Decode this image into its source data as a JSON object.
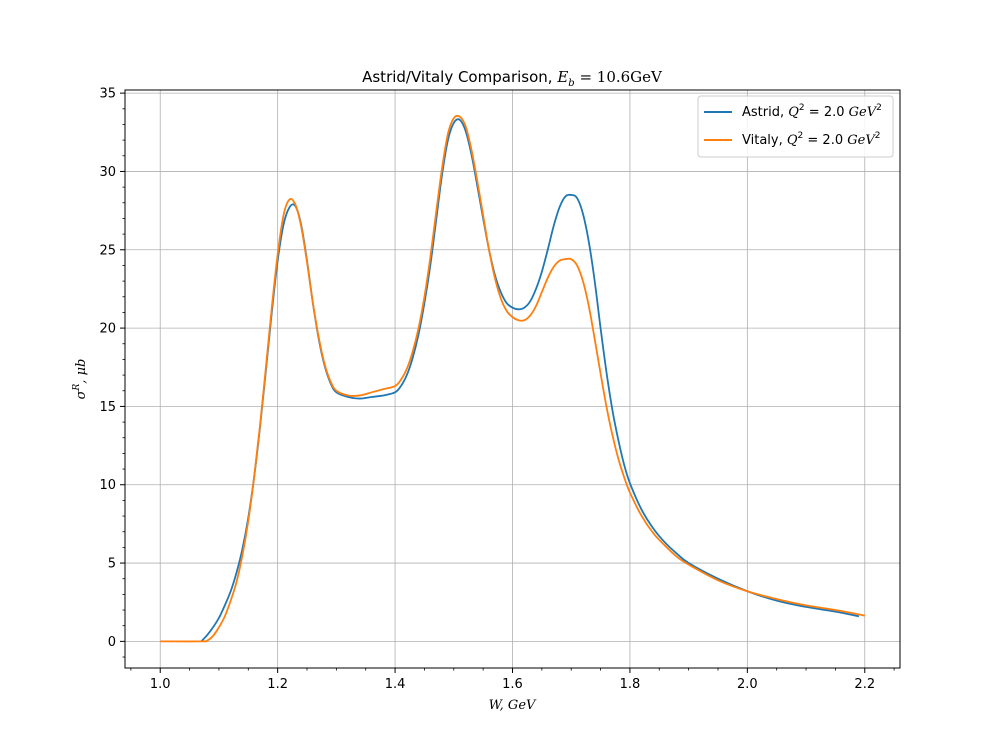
{
  "chart_data": {
    "type": "line",
    "title": "Astrid/Vitaly Comparison, E_b = 10.6GeV",
    "title_parts": {
      "prefix": "Astrid/Vitaly Comparison, ",
      "symbol": "E",
      "subscript": "b",
      "suffix": " = 10.6GeV"
    },
    "xlabel": "W, GeV",
    "ylabel": "σR, μb",
    "ylabel_parts": {
      "base": "σ",
      "sup": "R",
      "rest": ", μb"
    },
    "xlim": [
      0.94,
      2.26
    ],
    "ylim": [
      -1.7,
      35.2
    ],
    "x_ticks": [
      1.0,
      1.2,
      1.4,
      1.6,
      1.8,
      2.0,
      2.2
    ],
    "x_tick_labels": [
      "1.0",
      "1.2",
      "1.4",
      "1.6",
      "1.8",
      "2.0",
      "2.2"
    ],
    "y_ticks": [
      0,
      5,
      10,
      15,
      20,
      25,
      30,
      35
    ],
    "y_tick_labels": [
      "0",
      "5",
      "10",
      "15",
      "20",
      "25",
      "30",
      "35"
    ],
    "grid": true,
    "legend_position": "top-right",
    "series": [
      {
        "name": "Astrid, Q2 = 2.0 GeV2",
        "legend_parts": {
          "prefix": "Astrid, ",
          "q": "Q",
          "sup": "2",
          "eq": " = 2.0 ",
          "unit": "GeV",
          "usup": "2"
        },
        "color": "#1f77b4",
        "points": [
          [
            1.07,
            0
          ],
          [
            1.08,
            0.4
          ],
          [
            1.09,
            0.9
          ],
          [
            1.1,
            1.5
          ],
          [
            1.11,
            2.3
          ],
          [
            1.12,
            3.2
          ],
          [
            1.13,
            4.4
          ],
          [
            1.14,
            5.9
          ],
          [
            1.15,
            7.9
          ],
          [
            1.16,
            10.5
          ],
          [
            1.17,
            13.7
          ],
          [
            1.18,
            17.3
          ],
          [
            1.19,
            21.0
          ],
          [
            1.2,
            24.3
          ],
          [
            1.21,
            26.6
          ],
          [
            1.22,
            27.7
          ],
          [
            1.23,
            27.8
          ],
          [
            1.24,
            26.6
          ],
          [
            1.25,
            24.3
          ],
          [
            1.26,
            21.6
          ],
          [
            1.27,
            19.3
          ],
          [
            1.28,
            17.6
          ],
          [
            1.29,
            16.5
          ],
          [
            1.3,
            15.9
          ],
          [
            1.32,
            15.6
          ],
          [
            1.34,
            15.5
          ],
          [
            1.36,
            15.6
          ],
          [
            1.38,
            15.7
          ],
          [
            1.4,
            15.9
          ],
          [
            1.41,
            16.3
          ],
          [
            1.42,
            17.0
          ],
          [
            1.43,
            18.1
          ],
          [
            1.44,
            19.6
          ],
          [
            1.45,
            21.6
          ],
          [
            1.46,
            24.0
          ],
          [
            1.47,
            26.9
          ],
          [
            1.48,
            29.8
          ],
          [
            1.49,
            32.0
          ],
          [
            1.5,
            33.1
          ],
          [
            1.51,
            33.3
          ],
          [
            1.52,
            32.6
          ],
          [
            1.53,
            31.1
          ],
          [
            1.54,
            29.1
          ],
          [
            1.55,
            27.0
          ],
          [
            1.56,
            25.0
          ],
          [
            1.57,
            23.4
          ],
          [
            1.58,
            22.3
          ],
          [
            1.59,
            21.6
          ],
          [
            1.6,
            21.3
          ],
          [
            1.61,
            21.2
          ],
          [
            1.62,
            21.3
          ],
          [
            1.63,
            21.7
          ],
          [
            1.64,
            22.5
          ],
          [
            1.65,
            23.6
          ],
          [
            1.66,
            25.0
          ],
          [
            1.67,
            26.5
          ],
          [
            1.68,
            27.7
          ],
          [
            1.69,
            28.4
          ],
          [
            1.7,
            28.5
          ],
          [
            1.71,
            28.3
          ],
          [
            1.72,
            27.3
          ],
          [
            1.73,
            25.5
          ],
          [
            1.74,
            23.0
          ],
          [
            1.75,
            20.0
          ],
          [
            1.76,
            17.2
          ],
          [
            1.77,
            14.8
          ],
          [
            1.78,
            12.9
          ],
          [
            1.79,
            11.3
          ],
          [
            1.8,
            10.1
          ],
          [
            1.82,
            8.4
          ],
          [
            1.84,
            7.2
          ],
          [
            1.86,
            6.3
          ],
          [
            1.88,
            5.6
          ],
          [
            1.9,
            5.0
          ],
          [
            1.95,
            4.0
          ],
          [
            2.0,
            3.2
          ],
          [
            2.05,
            2.6
          ],
          [
            2.1,
            2.2
          ],
          [
            2.15,
            1.9
          ],
          [
            2.19,
            1.6
          ]
        ]
      },
      {
        "name": "Vitaly, Q2 = 2.0 GeV2",
        "legend_parts": {
          "prefix": "Vitaly, ",
          "q": "Q",
          "sup": "2",
          "eq": " = 2.0 ",
          "unit": "GeV",
          "usup": "2"
        },
        "color": "#ff7f0e",
        "points": [
          [
            1.0,
            0
          ],
          [
            1.07,
            0
          ],
          [
            1.08,
            0.05
          ],
          [
            1.09,
            0.35
          ],
          [
            1.1,
            0.9
          ],
          [
            1.11,
            1.6
          ],
          [
            1.12,
            2.6
          ],
          [
            1.13,
            3.8
          ],
          [
            1.14,
            5.5
          ],
          [
            1.15,
            7.7
          ],
          [
            1.16,
            10.5
          ],
          [
            1.17,
            13.8
          ],
          [
            1.18,
            17.5
          ],
          [
            1.19,
            21.3
          ],
          [
            1.2,
            24.7
          ],
          [
            1.21,
            27.2
          ],
          [
            1.22,
            28.2
          ],
          [
            1.23,
            27.9
          ],
          [
            1.24,
            26.5
          ],
          [
            1.25,
            24.2
          ],
          [
            1.26,
            21.6
          ],
          [
            1.27,
            19.4
          ],
          [
            1.28,
            17.7
          ],
          [
            1.29,
            16.6
          ],
          [
            1.3,
            16.0
          ],
          [
            1.32,
            15.7
          ],
          [
            1.34,
            15.7
          ],
          [
            1.36,
            15.9
          ],
          [
            1.38,
            16.1
          ],
          [
            1.4,
            16.3
          ],
          [
            1.41,
            16.7
          ],
          [
            1.42,
            17.4
          ],
          [
            1.43,
            18.5
          ],
          [
            1.44,
            20.0
          ],
          [
            1.45,
            22.0
          ],
          [
            1.46,
            24.5
          ],
          [
            1.47,
            27.4
          ],
          [
            1.48,
            30.2
          ],
          [
            1.49,
            32.4
          ],
          [
            1.5,
            33.4
          ],
          [
            1.51,
            33.5
          ],
          [
            1.52,
            32.9
          ],
          [
            1.53,
            31.4
          ],
          [
            1.54,
            29.4
          ],
          [
            1.55,
            27.2
          ],
          [
            1.56,
            25.0
          ],
          [
            1.57,
            23.2
          ],
          [
            1.58,
            21.9
          ],
          [
            1.59,
            21.1
          ],
          [
            1.6,
            20.7
          ],
          [
            1.61,
            20.5
          ],
          [
            1.62,
            20.5
          ],
          [
            1.63,
            20.8
          ],
          [
            1.64,
            21.4
          ],
          [
            1.65,
            22.3
          ],
          [
            1.66,
            23.2
          ],
          [
            1.67,
            23.9
          ],
          [
            1.68,
            24.3
          ],
          [
            1.69,
            24.4
          ],
          [
            1.7,
            24.4
          ],
          [
            1.71,
            24.0
          ],
          [
            1.72,
            23.0
          ],
          [
            1.73,
            21.4
          ],
          [
            1.74,
            19.3
          ],
          [
            1.75,
            17.1
          ],
          [
            1.76,
            15.0
          ],
          [
            1.77,
            13.2
          ],
          [
            1.78,
            11.7
          ],
          [
            1.79,
            10.5
          ],
          [
            1.8,
            9.5
          ],
          [
            1.82,
            8.0
          ],
          [
            1.84,
            6.9
          ],
          [
            1.86,
            6.1
          ],
          [
            1.88,
            5.4
          ],
          [
            1.9,
            4.9
          ],
          [
            1.95,
            3.9
          ],
          [
            2.0,
            3.2
          ],
          [
            2.05,
            2.7
          ],
          [
            2.1,
            2.3
          ],
          [
            2.15,
            2.0
          ],
          [
            2.2,
            1.65
          ]
        ]
      }
    ]
  }
}
